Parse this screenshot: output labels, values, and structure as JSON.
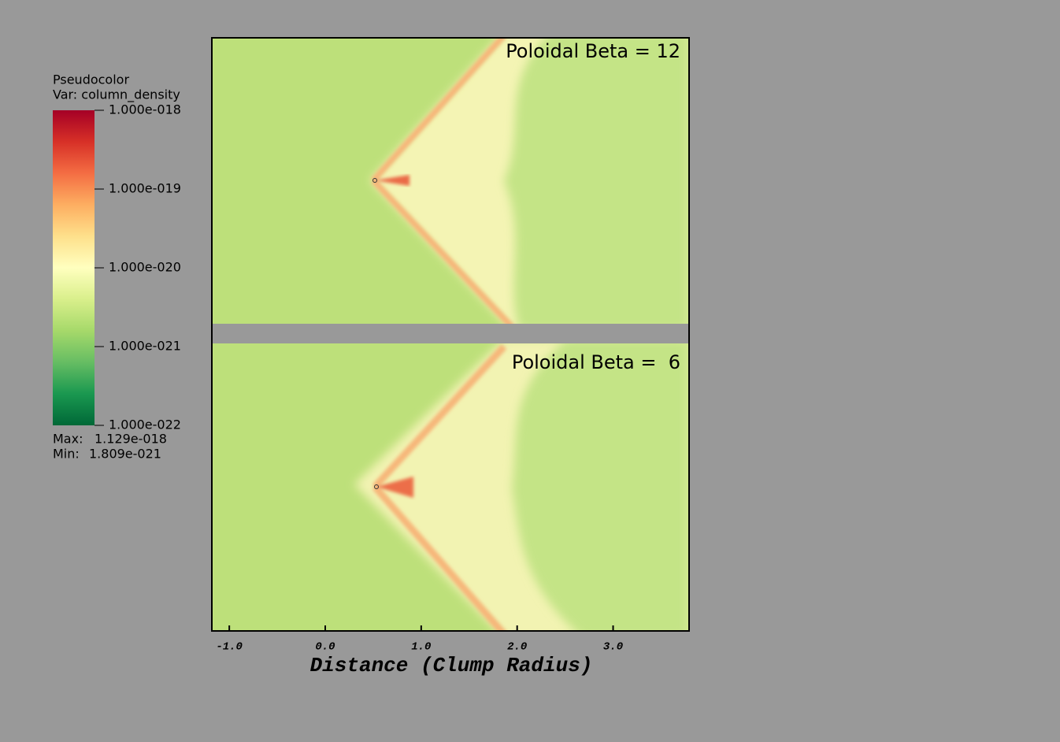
{
  "chart_data": {
    "type": "pseudocolor",
    "legend_title": "Pseudocolor",
    "legend_var": "Var: column_density",
    "colorbar": {
      "log": true,
      "ylim": [
        1e-22,
        1e-18
      ],
      "yticks": [
        {
          "value": 1e-18,
          "label": "1.000e-018"
        },
        {
          "value": 1e-19,
          "label": "1.000e-019"
        },
        {
          "value": 1e-20,
          "label": "1.000e-020"
        },
        {
          "value": 1e-21,
          "label": "1.000e-021"
        },
        {
          "value": 1e-22,
          "label": "1.000e-022"
        }
      ],
      "colormap": [
        "#006837",
        "#1a9850",
        "#66bd63",
        "#a6d96a",
        "#d9ef8b",
        "#ffffbf",
        "#fee08b",
        "#fdae61",
        "#f46d43",
        "#d73027",
        "#a50026"
      ]
    },
    "max_label": "Max:",
    "max": {
      "value": 1.129e-18,
      "label": "1.129e-018"
    },
    "min_label": "Min:",
    "min": {
      "value": 1.809e-21,
      "label": "1.809e-021"
    },
    "panels": [
      {
        "title": "Poloidal Beta = 12"
      },
      {
        "title": "Poloidal Beta =  6"
      }
    ],
    "xlabel": "Distance (Clump Radius)",
    "xlim": [
      -1.19,
      3.8
    ],
    "xticks": [
      {
        "value": -1,
        "label": "-1.0"
      },
      {
        "value": 0,
        "label": "0.0"
      },
      {
        "value": 1,
        "label": "1.0"
      },
      {
        "value": 2,
        "label": "2.0"
      },
      {
        "value": 3,
        "label": "3.0"
      }
    ]
  }
}
